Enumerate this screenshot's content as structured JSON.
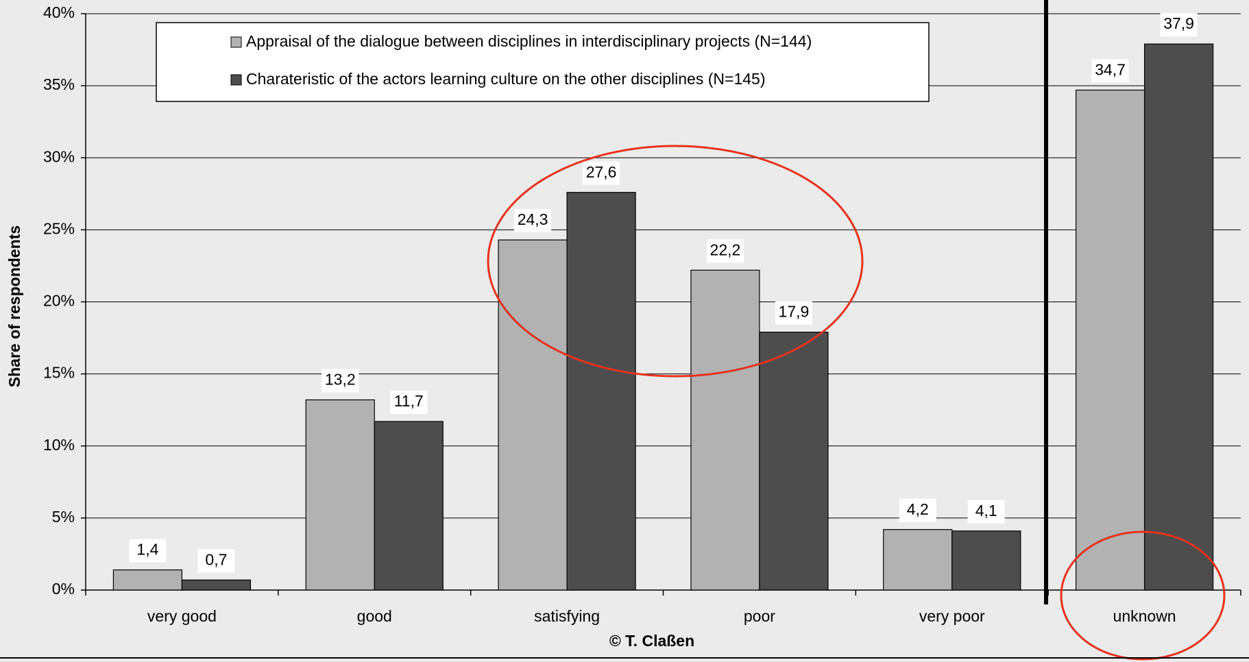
{
  "chart_data": {
    "type": "bar",
    "y_label": "Share of respondents",
    "x_label": "© T. Claßen",
    "categories": [
      "very good",
      "good",
      "satisfying",
      "poor",
      "very poor",
      "unknown"
    ],
    "series": [
      {
        "name": "Appraisal of the dialogue between disciplines in interdisciplinary projects (N=144)",
        "color": "#b2b2b2",
        "values": [
          1.4,
          13.2,
          24.3,
          22.2,
          4.2,
          34.7
        ],
        "value_labels": [
          "1,4",
          "13,2",
          "24,3",
          "22,2",
          "4,2",
          "34,7"
        ]
      },
      {
        "name": "Charateristic of the actors learning culture on the other disciplines (N=145)",
        "color": "#4d4d4d",
        "values": [
          0.7,
          11.7,
          27.6,
          17.9,
          4.1,
          37.9
        ],
        "value_labels": [
          "0,7",
          "11,7",
          "27,6",
          "17,9",
          "4,1",
          "37,9"
        ]
      }
    ],
    "ylim": [
      0,
      40
    ],
    "yticks": [
      {
        "value": 0,
        "label": "0%"
      },
      {
        "value": 5,
        "label": "5%"
      },
      {
        "value": 10,
        "label": "10%"
      },
      {
        "value": 15,
        "label": "15%"
      },
      {
        "value": 20,
        "label": "20%"
      },
      {
        "value": 25,
        "label": "25%"
      },
      {
        "value": 30,
        "label": "30%"
      },
      {
        "value": 35,
        "label": "35%"
      },
      {
        "value": 40,
        "label": "40%"
      }
    ],
    "grid": true
  }
}
